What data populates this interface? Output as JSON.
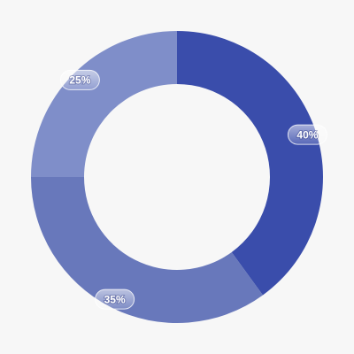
{
  "chart_data": {
    "type": "donut",
    "values": [
      40,
      35,
      25
    ],
    "value_labels": [
      "40%",
      "35%",
      "25%"
    ],
    "colors": [
      "#3a4dab",
      "#6878bb",
      "#7f8ec9"
    ]
  }
}
